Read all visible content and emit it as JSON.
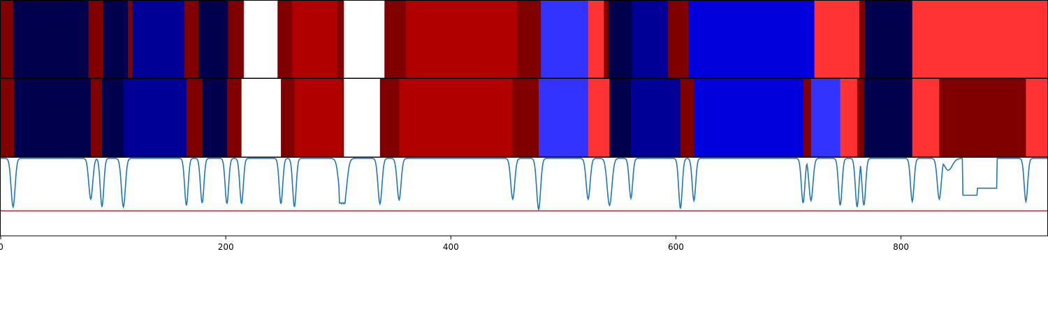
{
  "chart_data": {
    "type": "heatmap",
    "title": "",
    "xlabel": "",
    "ylabel": "",
    "xlim": [
      0,
      930
    ],
    "x_ticks": [
      "0",
      "200",
      "400",
      "600",
      "800"
    ],
    "x_tick_values": [
      0,
      200,
      400,
      600,
      800
    ],
    "grid": false,
    "legend": "none",
    "colormap": "seismic",
    "tracks": [
      {
        "name": "",
        "segments": [
          {
            "start": 0,
            "end": 11,
            "color": "#800000"
          },
          {
            "start": 11,
            "end": 78,
            "color": "#00004c"
          },
          {
            "start": 78,
            "end": 91,
            "color": "#800000"
          },
          {
            "start": 91,
            "end": 113,
            "color": "#00004c"
          },
          {
            "start": 113,
            "end": 117,
            "color": "#800000"
          },
          {
            "start": 117,
            "end": 163,
            "color": "#000096"
          },
          {
            "start": 163,
            "end": 176,
            "color": "#800000"
          },
          {
            "start": 176,
            "end": 202,
            "color": "#00004c"
          },
          {
            "start": 202,
            "end": 216,
            "color": "#800000"
          },
          {
            "start": 216,
            "end": 246,
            "color": "#ffffff"
          },
          {
            "start": 246,
            "end": 259,
            "color": "#800000"
          },
          {
            "start": 259,
            "end": 299,
            "color": "#b00000"
          },
          {
            "start": 299,
            "end": 305,
            "color": "#800000"
          },
          {
            "start": 305,
            "end": 341,
            "color": "#ffffff"
          },
          {
            "start": 341,
            "end": 360,
            "color": "#800000"
          },
          {
            "start": 360,
            "end": 459,
            "color": "#b00000"
          },
          {
            "start": 459,
            "end": 480,
            "color": "#800000"
          },
          {
            "start": 480,
            "end": 522,
            "color": "#3333ff"
          },
          {
            "start": 522,
            "end": 536,
            "color": "#ff3333"
          },
          {
            "start": 536,
            "end": 540,
            "color": "#800000"
          },
          {
            "start": 540,
            "end": 561,
            "color": "#00004c"
          },
          {
            "start": 561,
            "end": 593,
            "color": "#000096"
          },
          {
            "start": 593,
            "end": 611,
            "color": "#800000"
          },
          {
            "start": 611,
            "end": 723,
            "color": "#0000dd"
          },
          {
            "start": 723,
            "end": 763,
            "color": "#ff3333"
          },
          {
            "start": 763,
            "end": 768,
            "color": "#800000"
          },
          {
            "start": 768,
            "end": 810,
            "color": "#00004c"
          },
          {
            "start": 810,
            "end": 930,
            "color": "#ff3333"
          }
        ]
      },
      {
        "name": "",
        "segments": [
          {
            "start": 0,
            "end": 12,
            "color": "#800000"
          },
          {
            "start": 12,
            "end": 80,
            "color": "#00004c"
          },
          {
            "start": 80,
            "end": 90,
            "color": "#800000"
          },
          {
            "start": 90,
            "end": 109,
            "color": "#00004c"
          },
          {
            "start": 109,
            "end": 165,
            "color": "#000096"
          },
          {
            "start": 165,
            "end": 179,
            "color": "#800000"
          },
          {
            "start": 179,
            "end": 201,
            "color": "#00004c"
          },
          {
            "start": 201,
            "end": 214,
            "color": "#800000"
          },
          {
            "start": 214,
            "end": 249,
            "color": "#ffffff"
          },
          {
            "start": 249,
            "end": 261,
            "color": "#800000"
          },
          {
            "start": 261,
            "end": 303,
            "color": "#b00000"
          },
          {
            "start": 303,
            "end": 305,
            "color": "#800000"
          },
          {
            "start": 305,
            "end": 337,
            "color": "#ffffff"
          },
          {
            "start": 337,
            "end": 354,
            "color": "#800000"
          },
          {
            "start": 354,
            "end": 455,
            "color": "#b00000"
          },
          {
            "start": 455,
            "end": 478,
            "color": "#800000"
          },
          {
            "start": 478,
            "end": 522,
            "color": "#3333ff"
          },
          {
            "start": 522,
            "end": 541,
            "color": "#ff3333"
          },
          {
            "start": 541,
            "end": 560,
            "color": "#00004c"
          },
          {
            "start": 560,
            "end": 604,
            "color": "#000096"
          },
          {
            "start": 604,
            "end": 616,
            "color": "#800000"
          },
          {
            "start": 616,
            "end": 713,
            "color": "#0000dd"
          },
          {
            "start": 713,
            "end": 720,
            "color": "#800000"
          },
          {
            "start": 720,
            "end": 746,
            "color": "#3333ff"
          },
          {
            "start": 746,
            "end": 761,
            "color": "#ff3333"
          },
          {
            "start": 761,
            "end": 767,
            "color": "#800000"
          },
          {
            "start": 767,
            "end": 810,
            "color": "#00004c"
          },
          {
            "start": 810,
            "end": 834,
            "color": "#ff3333"
          },
          {
            "start": 834,
            "end": 911,
            "color": "#800000"
          },
          {
            "start": 911,
            "end": 930,
            "color": "#ff3333"
          }
        ]
      }
    ],
    "line_panel": {
      "ylim": [
        0,
        1
      ],
      "threshold": 0.32,
      "threshold_color": "#d62728",
      "line_color": "#1f77b4",
      "baseline": 0.99,
      "dips": [
        {
          "x": 11,
          "depth": 0.62,
          "w": 2.5
        },
        {
          "x": 80,
          "depth": 0.52,
          "w": 2.5
        },
        {
          "x": 90,
          "depth": 0.62,
          "w": 2.2
        },
        {
          "x": 109,
          "depth": 0.62,
          "w": 2.5
        },
        {
          "x": 165,
          "depth": 0.6,
          "w": 2.2
        },
        {
          "x": 179,
          "depth": 0.57,
          "w": 2.2
        },
        {
          "x": 201,
          "depth": 0.58,
          "w": 2.2
        },
        {
          "x": 214,
          "depth": 0.58,
          "w": 2.2
        },
        {
          "x": 249,
          "depth": 0.58,
          "w": 2.2
        },
        {
          "x": 261,
          "depth": 0.62,
          "w": 2.2
        },
        {
          "x": 303,
          "depth": 0.58,
          "w": 3.5
        },
        {
          "x": 305,
          "depth": 0.58,
          "w": 3.5
        },
        {
          "x": 337,
          "depth": 0.58,
          "w": 2.5
        },
        {
          "x": 354,
          "depth": 0.53,
          "w": 2.5
        },
        {
          "x": 455,
          "depth": 0.52,
          "w": 2.5
        },
        {
          "x": 478,
          "depth": 0.65,
          "w": 2.5
        },
        {
          "x": 522,
          "depth": 0.52,
          "w": 2.5
        },
        {
          "x": 541,
          "depth": 0.6,
          "w": 3.0
        },
        {
          "x": 560,
          "depth": 0.51,
          "w": 2.2
        },
        {
          "x": 604,
          "depth": 0.64,
          "w": 2.2
        },
        {
          "x": 616,
          "depth": 0.54,
          "w": 2.2
        },
        {
          "x": 713,
          "depth": 0.57,
          "w": 2.2
        },
        {
          "x": 720,
          "depth": 0.54,
          "w": 2.5
        },
        {
          "x": 746,
          "depth": 0.6,
          "w": 2.2
        },
        {
          "x": 761,
          "depth": 0.62,
          "w": 2.2
        },
        {
          "x": 767,
          "depth": 0.6,
          "w": 2.2
        },
        {
          "x": 810,
          "depth": 0.55,
          "w": 2.2
        },
        {
          "x": 834,
          "depth": 0.52,
          "w": 2.5
        },
        {
          "x": 911,
          "depth": 0.55,
          "w": 2.2
        }
      ],
      "plateaus": [
        {
          "from": 301,
          "to": 306,
          "value": 0.42
        },
        {
          "from": 855,
          "to": 868,
          "value": 0.52
        },
        {
          "from": 868,
          "to": 885,
          "value": 0.61
        }
      ],
      "bumps": [
        {
          "x": 842,
          "value": 0.84,
          "w": 5
        }
      ]
    }
  }
}
